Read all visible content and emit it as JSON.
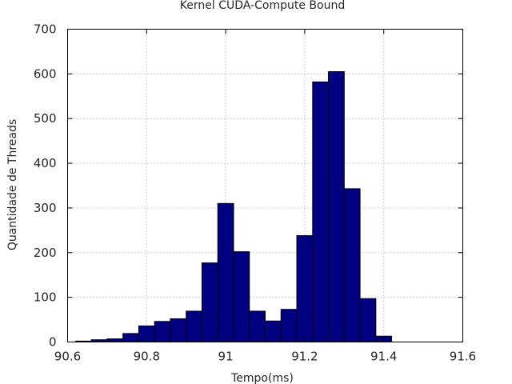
{
  "chart_data": {
    "type": "bar",
    "title": "Kernel CUDA-Compute Bound",
    "xlabel": "Tempo(ms)",
    "ylabel": "Quantidade de Threads",
    "xlim": [
      90.6,
      91.6
    ],
    "ylim": [
      0,
      700
    ],
    "xticks": [
      "90.6",
      "90.8",
      "91",
      "91.2",
      "91.4",
      "91.6"
    ],
    "yticks": [
      "0",
      "100",
      "200",
      "300",
      "400",
      "500",
      "600",
      "700"
    ],
    "grid": true,
    "bar_color": "#000080",
    "bin_width": 0.04,
    "bins": [
      {
        "x": 90.64,
        "value": 2
      },
      {
        "x": 90.68,
        "value": 5
      },
      {
        "x": 90.72,
        "value": 7
      },
      {
        "x": 90.76,
        "value": 19
      },
      {
        "x": 90.8,
        "value": 36
      },
      {
        "x": 90.84,
        "value": 46
      },
      {
        "x": 90.88,
        "value": 52
      },
      {
        "x": 90.92,
        "value": 69
      },
      {
        "x": 90.96,
        "value": 177
      },
      {
        "x": 91.0,
        "value": 310
      },
      {
        "x": 91.04,
        "value": 202
      },
      {
        "x": 91.08,
        "value": 69
      },
      {
        "x": 91.12,
        "value": 47
      },
      {
        "x": 91.16,
        "value": 73
      },
      {
        "x": 91.2,
        "value": 238
      },
      {
        "x": 91.24,
        "value": 582
      },
      {
        "x": 91.28,
        "value": 605
      },
      {
        "x": 91.32,
        "value": 343
      },
      {
        "x": 91.36,
        "value": 97
      },
      {
        "x": 91.4,
        "value": 13
      }
    ]
  }
}
